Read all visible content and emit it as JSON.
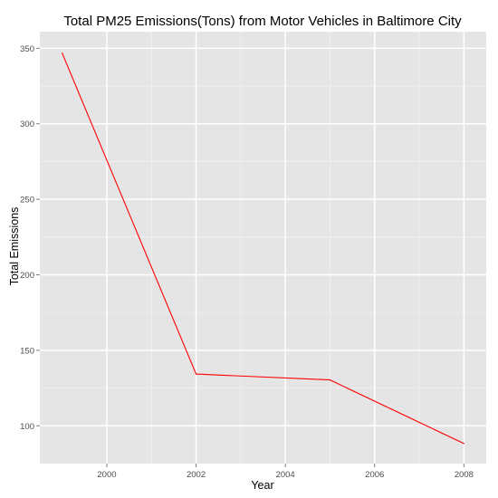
{
  "chart_data": {
    "type": "line",
    "title": "Total PM25 Emissions(Tons) from Motor Vehicles in Baltimore City",
    "xlabel": "Year",
    "ylabel": "Total Emissions",
    "x": [
      1999,
      2002,
      2005,
      2008
    ],
    "series": [
      {
        "values": [
          346.8,
          134.3,
          130.4,
          88.3
        ],
        "color": "#ff0000"
      }
    ],
    "xlim": [
      1998.5,
      2008.5
    ],
    "ylim": [
      75,
      361
    ],
    "x_ticks": [
      2000,
      2002,
      2004,
      2006,
      2008
    ],
    "y_ticks": [
      100,
      150,
      200,
      250,
      300,
      350
    ],
    "x_tick_labels": [
      "2000",
      "2002",
      "2004",
      "2006",
      "2008"
    ],
    "y_tick_labels": [
      "100",
      "150",
      "200",
      "250",
      "300",
      "350"
    ],
    "grid": true,
    "panel_background": "#e5e5e5"
  }
}
